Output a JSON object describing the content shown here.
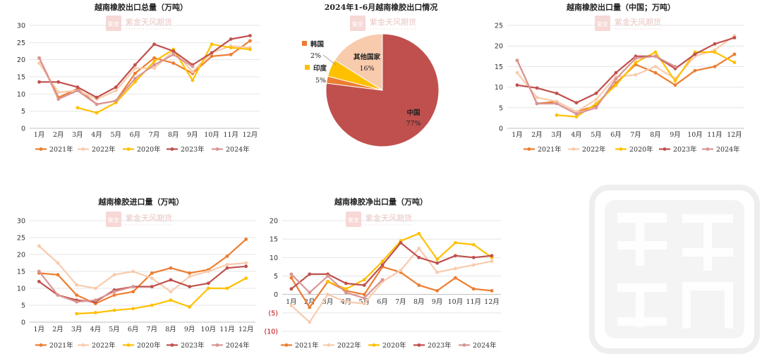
{
  "watermark": {
    "text": "紫金天风期货",
    "seal": "紫金天风",
    "big": "紫金天风"
  },
  "months": [
    "1月",
    "2月",
    "3月",
    "4月",
    "5月",
    "6月",
    "7月",
    "8月",
    "9月",
    "10月",
    "11月",
    "12月"
  ],
  "colors": {
    "2021年": "#ed7d31",
    "2022年": "#f8cbad",
    "2020年": "#ffc000",
    "2023年": "#c0504d",
    "2024年": "#d99594"
  },
  "chart_data": [
    {
      "id": "total",
      "type": "line",
      "title": "越南橡胶出口总量（万吨）",
      "ylim": [
        0,
        30
      ],
      "yticks": [
        0,
        5,
        10,
        15,
        20,
        25,
        30
      ],
      "legend": [
        "2021年",
        "2022年",
        "2020年",
        "2023年",
        "2024年"
      ],
      "series": [
        {
          "name": "2021年",
          "values": [
            20.5,
            9.0,
            11.5,
            7.0,
            8.0,
            16.0,
            20.5,
            19.0,
            16.0,
            21.0,
            21.5,
            25.5
          ]
        },
        {
          "name": "2022年",
          "values": [
            19.0,
            10.5,
            11.0,
            8.5,
            11.0,
            17.5,
            17.5,
            22.5,
            16.5,
            22.0,
            24.0,
            23.5
          ]
        },
        {
          "name": "2020年",
          "values": [
            null,
            null,
            6.0,
            4.5,
            7.5,
            13.5,
            19.5,
            23.0,
            14.0,
            24.5,
            23.5,
            23.0
          ]
        },
        {
          "name": "2023年",
          "values": [
            13.5,
            13.5,
            12.0,
            9.0,
            12.0,
            18.5,
            24.5,
            22.5,
            18.5,
            22.0,
            26.0,
            27.0
          ]
        },
        {
          "name": "2024年",
          "values": [
            20.5,
            8.5,
            11.0,
            7.0,
            8.0,
            14.5,
            18.5,
            21.5,
            18.0,
            null,
            null,
            null
          ]
        }
      ]
    },
    {
      "id": "china",
      "type": "line",
      "title": "越南橡胶出口量（中国；万吨）",
      "ylim": [
        0,
        25
      ],
      "yticks": [
        0,
        5,
        10,
        15,
        20,
        25
      ],
      "legend": [
        "2021年",
        "2022年",
        "2020年",
        "2023年",
        "2024年"
      ],
      "series": [
        {
          "name": "2021年",
          "values": [
            16.5,
            6.0,
            6.5,
            4.0,
            5.5,
            11.0,
            15.5,
            13.5,
            10.5,
            14.0,
            15.0,
            18.0
          ]
        },
        {
          "name": "2022年",
          "values": [
            13.5,
            7.5,
            6.5,
            4.0,
            7.0,
            12.5,
            13.0,
            15.0,
            12.0,
            17.5,
            19.0,
            22.5
          ]
        },
        {
          "name": "2020年",
          "values": [
            null,
            null,
            3.2,
            2.8,
            6.0,
            10.5,
            16.0,
            18.5,
            11.5,
            18.5,
            18.5,
            16.0
          ]
        },
        {
          "name": "2023年",
          "values": [
            10.5,
            9.8,
            8.5,
            6.2,
            8.5,
            13.5,
            17.5,
            17.5,
            14.5,
            18.0,
            20.5,
            22.0
          ]
        },
        {
          "name": "2024年",
          "values": [
            16.5,
            6.0,
            6.0,
            3.5,
            5.0,
            12.0,
            17.0,
            17.5,
            15.0,
            null,
            null,
            null
          ]
        }
      ]
    },
    {
      "id": "import",
      "type": "line",
      "title": "越南橡胶进口量（万吨）",
      "ylim": [
        0,
        30
      ],
      "yticks": [
        0,
        5,
        10,
        15,
        20,
        25,
        30
      ],
      "legend": [
        "2021年",
        "2022年",
        "2020年",
        "2023年",
        "2024年"
      ],
      "series": [
        {
          "name": "2021年",
          "values": [
            14.5,
            14.0,
            8.0,
            5.5,
            8.0,
            9.0,
            14.5,
            16.0,
            14.5,
            15.5,
            19.5,
            24.5
          ]
        },
        {
          "name": "2022年",
          "values": [
            22.5,
            17.5,
            11.0,
            10.0,
            14.0,
            15.0,
            13.0,
            9.0,
            13.5,
            15.0,
            17.0,
            17.5
          ]
        },
        {
          "name": "2020年",
          "values": [
            null,
            null,
            2.5,
            2.8,
            3.5,
            4.0,
            5.0,
            6.5,
            4.5,
            10.0,
            10.0,
            13.0
          ]
        },
        {
          "name": "2023年",
          "values": [
            12.0,
            8.0,
            6.5,
            6.0,
            9.5,
            10.5,
            10.5,
            12.5,
            10.5,
            11.5,
            16.0,
            16.5
          ]
        },
        {
          "name": "2024年",
          "values": [
            15.0,
            8.0,
            6.0,
            6.5,
            9.0,
            10.5,
            null,
            null,
            null,
            null,
            null,
            null
          ]
        }
      ]
    },
    {
      "id": "net",
      "type": "line",
      "title": "越南橡胶净出口量（万吨）",
      "ylim": [
        -10,
        20
      ],
      "yticks": [
        -10,
        -5,
        0,
        5,
        10,
        15,
        20
      ],
      "yticklabels": [
        "(10)",
        "(5)",
        "0",
        "5",
        "10",
        "15",
        "20"
      ],
      "legend": [
        "2021年",
        "2022年",
        "2020年",
        "2023年",
        "2024年"
      ],
      "series": [
        {
          "name": "2021年",
          "values": [
            4.5,
            -3.5,
            3.5,
            1.0,
            0.0,
            7.5,
            6.0,
            2.5,
            1.0,
            4.5,
            1.5,
            1.0
          ]
        },
        {
          "name": "2022年",
          "values": [
            -3.0,
            -7.5,
            0.0,
            -2.0,
            -2.5,
            3.5,
            6.5,
            12.5,
            6.0,
            7.0,
            8.0,
            9.0
          ]
        },
        {
          "name": "2020年",
          "values": [
            null,
            null,
            3.5,
            1.5,
            4.0,
            9.0,
            14.5,
            16.5,
            9.5,
            14.0,
            13.5,
            10.0
          ]
        },
        {
          "name": "2023年",
          "values": [
            1.5,
            5.5,
            5.5,
            3.0,
            2.5,
            8.0,
            14.0,
            10.0,
            8.5,
            10.5,
            10.0,
            10.5
          ]
        },
        {
          "name": "2024年",
          "values": [
            5.5,
            0.5,
            5.0,
            0.5,
            -1.0,
            4.0,
            null,
            null,
            null,
            null,
            null,
            null
          ]
        }
      ]
    },
    {
      "id": "pie",
      "type": "pie",
      "title": "2024年1-6月越南橡胶出口情况",
      "slices": [
        {
          "label": "中国",
          "value": 77,
          "pct": "77%",
          "color": "#c0504d"
        },
        {
          "label": "韩国",
          "value": 2,
          "pct": "2%",
          "color": "#ed7d31"
        },
        {
          "label": "印度",
          "value": 5,
          "pct": "5%",
          "color": "#ffc000"
        },
        {
          "label": "其他国家",
          "value": 16,
          "pct": "16%",
          "color": "#f8cbad"
        }
      ]
    }
  ]
}
